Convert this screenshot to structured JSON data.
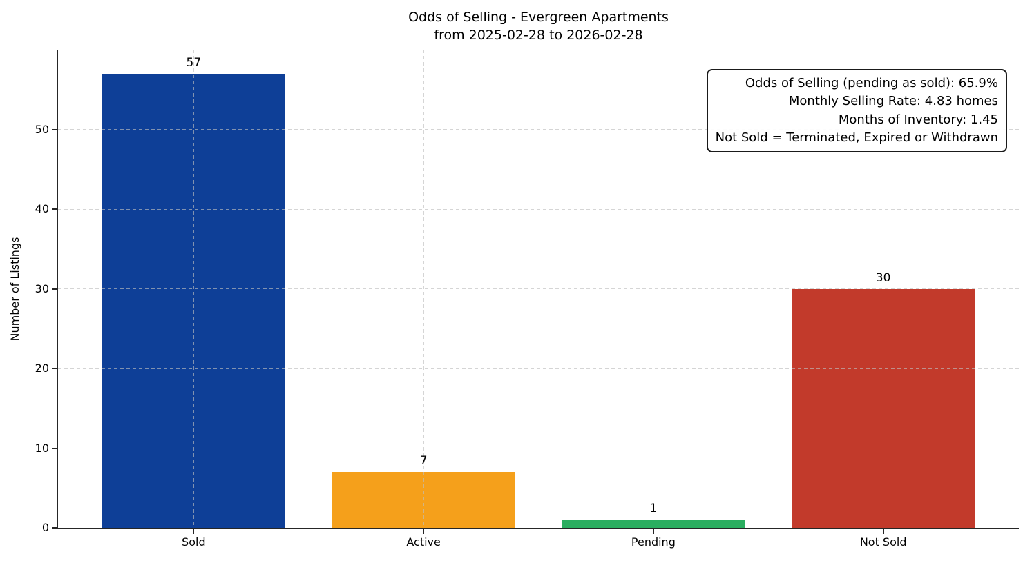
{
  "figure": {
    "background": "#ffffff",
    "axis_color": "#262626",
    "grid_color": "#bebebe"
  },
  "chart_data": {
    "type": "bar",
    "title": "Odds of Selling - Evergreen Apartments\nfrom 2025-02-28 to 2026-02-28",
    "title_lines": [
      "Odds of Selling - Evergreen Apartments",
      "from 2025-02-28 to 2026-02-28"
    ],
    "xlabel": "",
    "ylabel": "Number of Listings",
    "categories": [
      "Sold",
      "Active",
      "Pending",
      "Not Sold"
    ],
    "values": [
      57,
      7,
      1,
      30
    ],
    "bar_colors": [
      "#0e3f97",
      "#f5a01b",
      "#2bae60",
      "#c23a2b"
    ],
    "bar_width": 0.8,
    "ylim": [
      0,
      60
    ],
    "yticks": [
      0,
      10,
      20,
      30,
      40,
      50
    ],
    "grid": {
      "style": "dashed",
      "horizontal": true,
      "vertical": true,
      "above_bars": true
    },
    "legend_position": "none",
    "annotation_box": {
      "position": "top-right",
      "lines": [
        "Odds of Selling (pending as sold): 65.9%",
        "Monthly Selling Rate: 4.83 homes",
        "Months of Inventory: 1.45",
        "Not Sold = Terminated, Expired or Withdrawn"
      ]
    }
  }
}
